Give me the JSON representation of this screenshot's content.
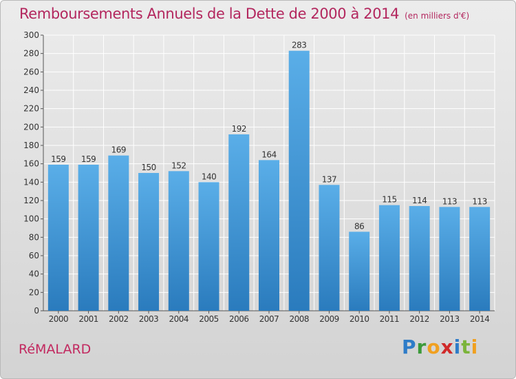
{
  "header": {
    "title": "Remboursements Annuels de la Dette de 2000 à 2014",
    "unit_note": "(en milliers d'€)"
  },
  "footer": {
    "town": "RéMALARD",
    "logo_text": "Proxiti"
  },
  "colors": {
    "bar_top": "#5aaee8",
    "bar_bottom": "#2a7bbd",
    "title": "#b3275e",
    "grid": "#ffffff",
    "axis_text": "#333333"
  },
  "chart_data": {
    "type": "bar",
    "title": "Remboursements Annuels de la Dette de 2000 à 2014",
    "subtitle": "(en milliers d'€)",
    "xlabel": "",
    "ylabel": "",
    "ylim": [
      0,
      300
    ],
    "ytick_step": 20,
    "grid": true,
    "categories": [
      "2000",
      "2001",
      "2002",
      "2003",
      "2004",
      "2005",
      "2006",
      "2007",
      "2008",
      "2009",
      "2010",
      "2011",
      "2012",
      "2013",
      "2014"
    ],
    "values": [
      159,
      159,
      169,
      150,
      152,
      140,
      192,
      164,
      283,
      137,
      86,
      115,
      114,
      113,
      113
    ]
  }
}
